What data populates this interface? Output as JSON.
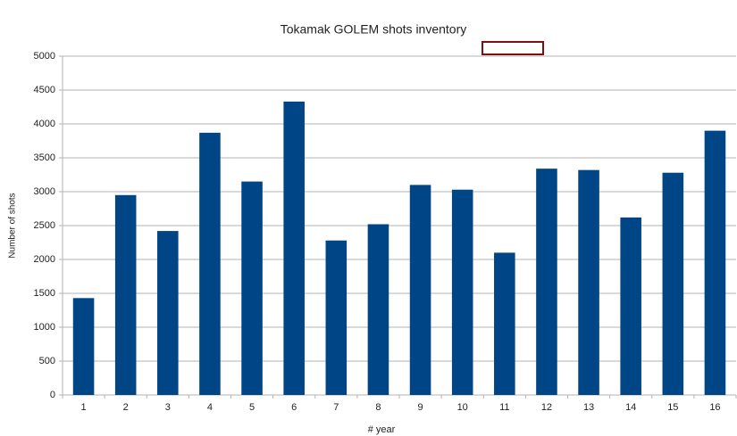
{
  "chart_data": {
    "type": "bar",
    "title": "Tokamak GOLEM shots inventory",
    "x_label": "# year",
    "y_label": "Number of shots",
    "categories": [
      "1",
      "2",
      "3",
      "4",
      "5",
      "6",
      "7",
      "8",
      "9",
      "10",
      "11",
      "12",
      "13",
      "14",
      "15",
      "16"
    ],
    "values": [
      1430,
      2950,
      2420,
      3870,
      3150,
      4330,
      2280,
      2520,
      3100,
      3030,
      2100,
      3340,
      3320,
      2620,
      3280,
      3900
    ],
    "color": "#004586",
    "ylim": [
      0,
      5000
    ],
    "yticks": [
      0,
      500,
      1000,
      1500,
      2000,
      2500,
      3000,
      3500,
      4000,
      4500,
      5000
    ],
    "grid": true
  }
}
